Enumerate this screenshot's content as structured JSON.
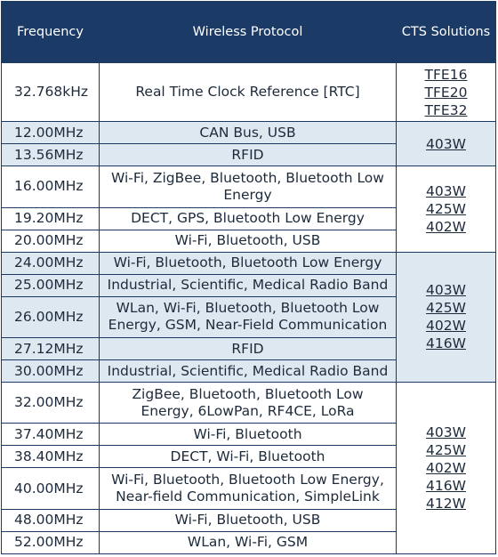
{
  "headers": {
    "frequency": "Frequency",
    "protocol": "Wireless Protocol",
    "solutions": "CTS Solutions"
  },
  "colors": {
    "header_bg": "#1b3a66",
    "band_bg": "#dde8f1",
    "text": "#1d2a3a"
  },
  "rows": [
    {
      "frequency": "32.768kHz",
      "protocol": "Real Time Clock Reference [RTC]"
    },
    {
      "frequency": "12.00MHz",
      "protocol": "CAN Bus, USB"
    },
    {
      "frequency": "13.56MHz",
      "protocol": "RFID"
    },
    {
      "frequency": "16.00MHz",
      "protocol": "Wi-Fi, ZigBee, Bluetooth, Bluetooth Low Energy"
    },
    {
      "frequency": "19.20MHz",
      "protocol": "DECT, GPS, Bluetooth Low Energy"
    },
    {
      "frequency": "20.00MHz",
      "protocol": "Wi-Fi, Bluetooth, USB"
    },
    {
      "frequency": "24.00MHz",
      "protocol": "Wi-Fi, Bluetooth, Bluetooth Low Energy"
    },
    {
      "frequency": "25.00MHz",
      "protocol": "Industrial, Scientific, Medical Radio Band"
    },
    {
      "frequency": "26.00MHz",
      "protocol": "WLan, Wi-Fi, Bluetooth, Bluetooth Low Energy, GSM, Near-Field Communication"
    },
    {
      "frequency": "27.12MHz",
      "protocol": "RFID"
    },
    {
      "frequency": "30.00MHz",
      "protocol": "Industrial, Scientific, Medical Radio Band"
    },
    {
      "frequency": "32.00MHz",
      "protocol": "ZigBee, Bluetooth, Bluetooth Low Energy, 6LowPan, RF4CE, LoRa"
    },
    {
      "frequency": "37.40MHz",
      "protocol": "Wi-Fi, Bluetooth"
    },
    {
      "frequency": "38.40MHz",
      "protocol": "DECT, Wi-Fi, Bluetooth"
    },
    {
      "frequency": "40.00MHz",
      "protocol": "Wi-Fi, Bluetooth, Bluetooth Low Energy, Near-field Communication, SimpleLink"
    },
    {
      "frequency": "48.00MHz",
      "protocol": "Wi-Fi, Bluetooth, USB"
    },
    {
      "frequency": "52.00MHz",
      "protocol": "WLan, Wi-Fi, GSM"
    }
  ],
  "solution_groups": [
    {
      "links": [
        "TFE16",
        "TFE20",
        "TFE32"
      ]
    },
    {
      "links": [
        "403W"
      ]
    },
    {
      "links": [
        "403W",
        "425W",
        "402W"
      ]
    },
    {
      "links": [
        "403W",
        "425W",
        "402W",
        "416W"
      ]
    },
    {
      "links": [
        "403W",
        "425W",
        "402W",
        "416W",
        "412W"
      ]
    }
  ]
}
